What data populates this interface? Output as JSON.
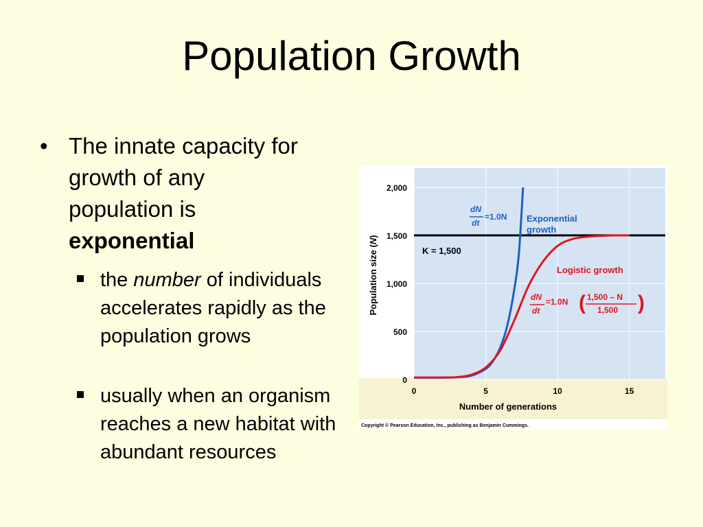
{
  "slide": {
    "title": "Population Growth",
    "bullet_intro": "The innate capacity for growth of any population is",
    "bullet_emphasis": "exponential",
    "sub1_pre": "the ",
    "sub1_em": "number",
    "sub1_post": " of individuals accelerates rapidly as the population grows",
    "sub2": "usually when an organism reaches a new habitat with abundant resources"
  },
  "chart_data": {
    "type": "line",
    "xlabel": "Number of generations",
    "ylabel_main": "Population size (",
    "ylabel_var": "N",
    "ylabel_close": ")",
    "xlim": [
      0,
      17.5
    ],
    "ylim": [
      0,
      2200
    ],
    "x_ticks": [
      "0",
      "5",
      "10",
      "15"
    ],
    "x_tick_values": [
      0,
      5,
      10,
      15
    ],
    "y_ticks": [
      "0",
      "500",
      "1,000",
      "1,500",
      "2,000"
    ],
    "y_tick_values": [
      0,
      500,
      1000,
      1500,
      2000
    ],
    "carrying_capacity": {
      "value": 1500,
      "label": "K = 1,500"
    },
    "series": [
      {
        "name": "Exponential growth",
        "line1": "Exponential",
        "line2": "growth",
        "color": "#1f5fbf",
        "x": [
          0,
          2,
          3,
          4,
          5,
          5.5,
          6,
          6.5,
          7,
          7.3,
          7.6
        ],
        "y": [
          20,
          20,
          23,
          40,
          110,
          190,
          330,
          560,
          950,
          1300,
          2000
        ]
      },
      {
        "name": "Logistic growth",
        "color": "#e0141e",
        "x": [
          0,
          2,
          3,
          4,
          5,
          6,
          7,
          8,
          9,
          10,
          11,
          12,
          13,
          14,
          15
        ],
        "y": [
          20,
          20,
          24,
          50,
          125,
          300,
          620,
          980,
          1230,
          1390,
          1460,
          1485,
          1495,
          1500,
          1500
        ]
      }
    ],
    "equations": {
      "exp_num": "dN",
      "exp_den": "dt",
      "exp_rhs": "=1.0N",
      "log_num": "dN",
      "log_den": "dt",
      "log_rhs": "=1.0N",
      "log_frac_num": "1,500 – N",
      "log_frac_den": "1,500"
    },
    "colors": {
      "plot_bg": "#d6e3f3",
      "k_line": "#000000",
      "exp": "#1f5fbf",
      "log": "#e0141e",
      "exp_label": "#1f5fbf",
      "log_label": "#e0141e",
      "x_band": "#f7f3d2"
    },
    "copyright": "Copyright © Pearson Education, Inc., publishing as Benjamin Cummings."
  }
}
